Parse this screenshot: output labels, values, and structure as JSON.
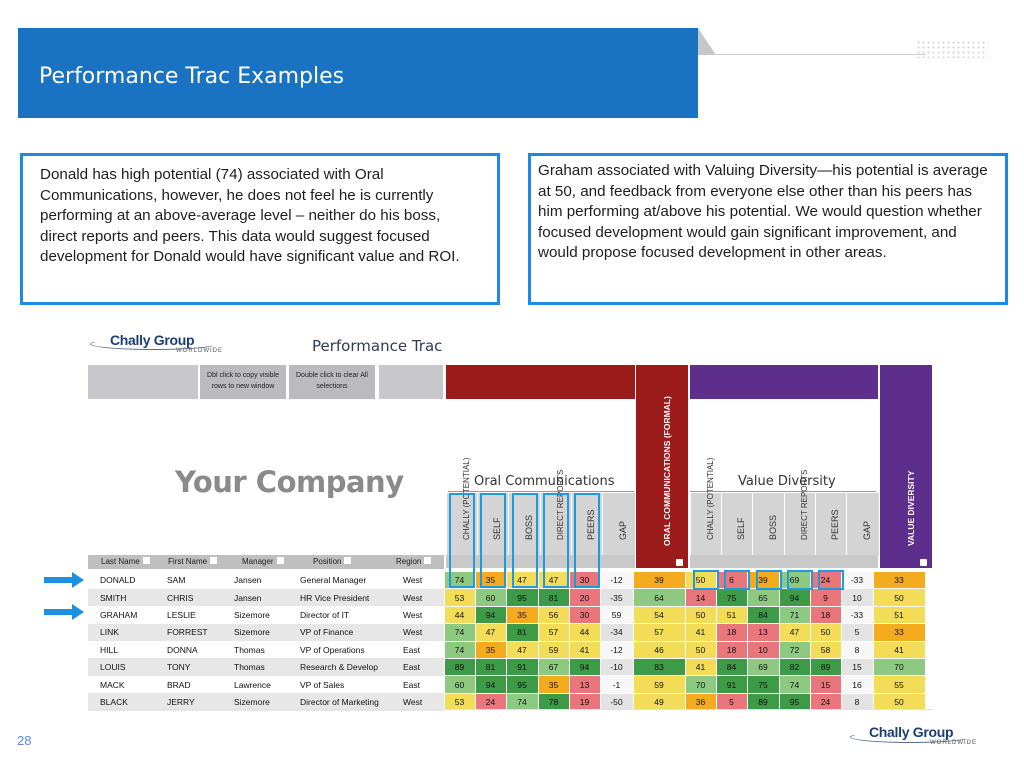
{
  "slide": {
    "title": "Performance Trac Examples",
    "page_number": "28"
  },
  "callouts": [
    "Donald has high potential (74) associated with Oral Communications, however, he does not feel he is currently performing at an above-average level – neither do his boss, direct reports and peers.  This data would suggest focused development for Donald would have significant value and ROI.",
    "Graham associated with Valuing Diversity—his potential is average at 50, and feedback from everyone else other than his peers has him performing at/above his potential.  We would question whether focused development would gain significant improvement, and would propose focused development in other areas."
  ],
  "logo": {
    "name": "Chally Group",
    "tagline": "WORLDWIDE"
  },
  "report": {
    "title": "Performance Trac",
    "copy_button": "Dbl click to copy visible rows to new window",
    "clear_button": "Double click to clear All selections",
    "company": "Your Company",
    "group1_title": "Oral Communications",
    "group2_title": "Value Diversity",
    "group1_headers": [
      "CHALLY (POTENTIAL)",
      "SELF",
      "BOSS",
      "DIRECT REPORTS",
      "PEERS",
      "GAP"
    ],
    "group2_headers": [
      "CHALLY (POTENTIAL)",
      "SELF",
      "BOSS",
      "DIRECT REPORTS",
      "PEERS",
      "GAP"
    ],
    "formal_label": "ORAL COMMUNICATIONS (FORMAL)",
    "diversity_label": "VALUE DIVERSITY",
    "columns": [
      "Last Name",
      "First Name",
      "Manager",
      "Position",
      "Region"
    ],
    "colors": {
      "red": "#e8767a",
      "green": "#3d9a47",
      "yellow": "#f2dc58",
      "orange": "#f5ab1e",
      "light_green": "#8dc980"
    }
  },
  "rows": [
    {
      "text": [
        "DONALD",
        "SAM",
        "Jansen",
        "General Manager",
        "West"
      ],
      "g1": [
        74,
        35,
        47,
        47,
        30,
        -12
      ],
      "formal": 39,
      "g2": [
        50,
        6,
        39,
        69,
        24,
        -33
      ],
      "div": 33
    },
    {
      "text": [
        "SMITH",
        "CHRIS",
        "Jansen",
        "HR Vice President",
        "West"
      ],
      "g1": [
        53,
        60,
        95,
        81,
        20,
        -35
      ],
      "formal": 64,
      "g2": [
        14,
        75,
        65,
        94,
        9,
        10
      ],
      "div": 50
    },
    {
      "text": [
        "GRAHAM",
        "LESLIE",
        "Sizemore",
        "Director of IT",
        "West"
      ],
      "g1": [
        44,
        94,
        35,
        56,
        30,
        59
      ],
      "formal": 54,
      "g2": [
        50,
        51,
        84,
        71,
        18,
        -33
      ],
      "div": 51
    },
    {
      "text": [
        "LINK",
        "FORREST",
        "Sizemore",
        "VP of Finance",
        "West"
      ],
      "g1": [
        74,
        47,
        81,
        57,
        44,
        -34
      ],
      "formal": 57,
      "g2": [
        41,
        18,
        13,
        47,
        50,
        5
      ],
      "div": 33
    },
    {
      "text": [
        "HILL",
        "DONNA",
        "Thomas",
        "VP of Operations",
        "East"
      ],
      "g1": [
        74,
        35,
        47,
        59,
        41,
        -12
      ],
      "formal": 46,
      "g2": [
        50,
        18,
        10,
        72,
        58,
        8
      ],
      "div": 41
    },
    {
      "text": [
        "LOUIS",
        "TONY",
        "Thomas",
        "Research & Develop",
        "East"
      ],
      "g1": [
        89,
        81,
        91,
        67,
        94,
        -10
      ],
      "formal": 83,
      "g2": [
        41,
        84,
        69,
        82,
        89,
        15
      ],
      "div": 70
    },
    {
      "text": [
        "MACK",
        "BRAD",
        "Lawrence",
        "VP of Sales",
        "East"
      ],
      "g1": [
        60,
        94,
        95,
        35,
        13,
        -1
      ],
      "formal": 59,
      "g2": [
        70,
        91,
        75,
        74,
        15,
        16
      ],
      "div": 55
    },
    {
      "text": [
        "BLACK",
        "JERRY",
        "Sizemore",
        "Director of Marketing",
        "West"
      ],
      "g1": [
        53,
        24,
        74,
        78,
        19,
        -50
      ],
      "formal": 49,
      "g2": [
        36,
        5,
        89,
        95,
        24,
        8
      ],
      "div": 50
    }
  ]
}
